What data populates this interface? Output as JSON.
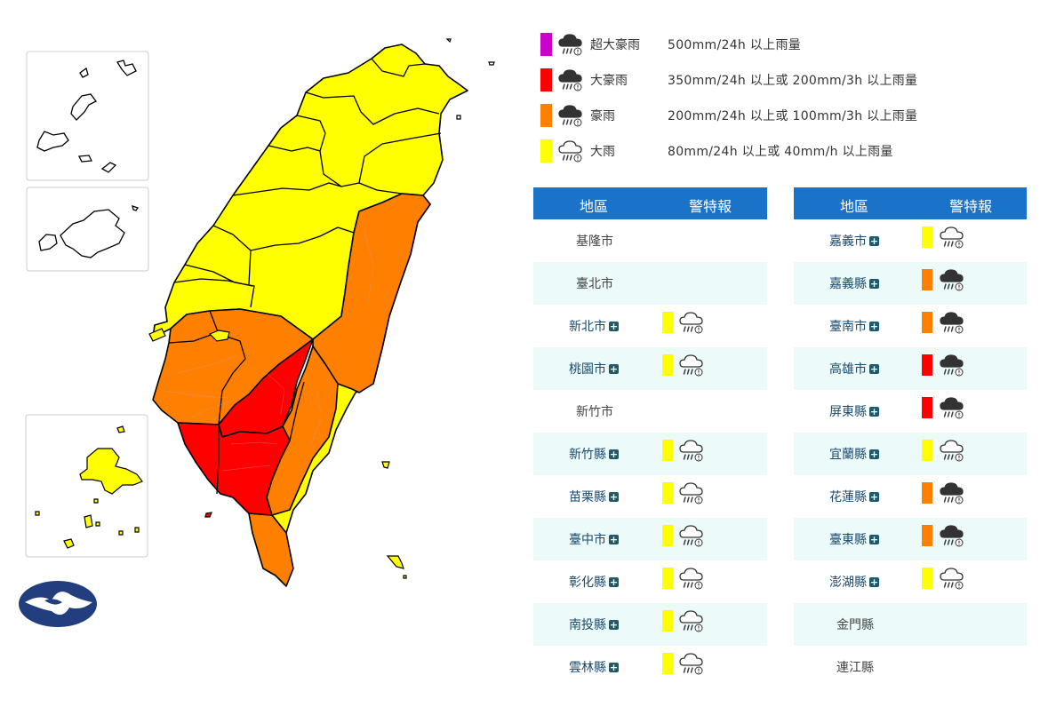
{
  "legend": [
    {
      "name": "超大豪雨",
      "desc": "500mm/24h 以上雨量",
      "color": "#cc00cc",
      "icon": "extreme-torrential-rain-icon"
    },
    {
      "name": "大豪雨",
      "desc": "350mm/24h 以上或 200mm/3h 以上雨量",
      "color": "#ff0000",
      "icon": "torrential-rain-icon"
    },
    {
      "name": "豪雨",
      "desc": "200mm/24h 以上或 100mm/3h 以上雨量",
      "color": "#ff8000",
      "icon": "extremely-heavy-rain-icon"
    },
    {
      "name": "大雨",
      "desc": "80mm/24h 以上或 40mm/h 以上雨量",
      "color": "#ffff00",
      "icon": "heavy-rain-icon"
    }
  ],
  "table_headers": {
    "region": "地區",
    "warning": "警特報"
  },
  "level_colors": {
    "heavy": "#ffff00",
    "extremely_heavy": "#ff8000",
    "torrential": "#ff0000",
    "extreme_torrential": "#cc00cc"
  },
  "tables": [
    [
      {
        "name": "基隆市",
        "level": null
      },
      {
        "name": "臺北市",
        "level": null
      },
      {
        "name": "新北市",
        "level": "heavy"
      },
      {
        "name": "桃園市",
        "level": "heavy"
      },
      {
        "name": "新竹市",
        "level": null
      },
      {
        "name": "新竹縣",
        "level": "heavy"
      },
      {
        "name": "苗栗縣",
        "level": "heavy"
      },
      {
        "name": "臺中市",
        "level": "heavy"
      },
      {
        "name": "彰化縣",
        "level": "heavy"
      },
      {
        "name": "南投縣",
        "level": "heavy"
      },
      {
        "name": "雲林縣",
        "level": "heavy"
      }
    ],
    [
      {
        "name": "嘉義市",
        "level": "heavy"
      },
      {
        "name": "嘉義縣",
        "level": "extremely_heavy"
      },
      {
        "name": "臺南市",
        "level": "extremely_heavy"
      },
      {
        "name": "高雄市",
        "level": "torrential"
      },
      {
        "name": "屏東縣",
        "level": "torrential"
      },
      {
        "name": "宜蘭縣",
        "level": "heavy"
      },
      {
        "name": "花蓮縣",
        "level": "extremely_heavy"
      },
      {
        "name": "臺東縣",
        "level": "extremely_heavy"
      },
      {
        "name": "澎湖縣",
        "level": "heavy"
      },
      {
        "name": "金門縣",
        "level": null
      },
      {
        "name": "連江縣",
        "level": null
      }
    ]
  ],
  "map_regions": [
    {
      "region": "north-west",
      "level": "heavy"
    },
    {
      "region": "central-inland",
      "level": "heavy"
    },
    {
      "region": "east-coast",
      "level": "heavy"
    },
    {
      "region": "central-mountain-east",
      "level": "extremely_heavy"
    },
    {
      "region": "chiayi-tainan",
      "level": "extremely_heavy"
    },
    {
      "region": "southeast-coast",
      "level": "extremely_heavy"
    },
    {
      "region": "pingtung-south",
      "level": "extremely_heavy"
    },
    {
      "region": "kaohsiung",
      "level": "torrential"
    },
    {
      "region": "pingtung",
      "level": "torrential"
    },
    {
      "region": "penghu",
      "level": "heavy"
    }
  ]
}
